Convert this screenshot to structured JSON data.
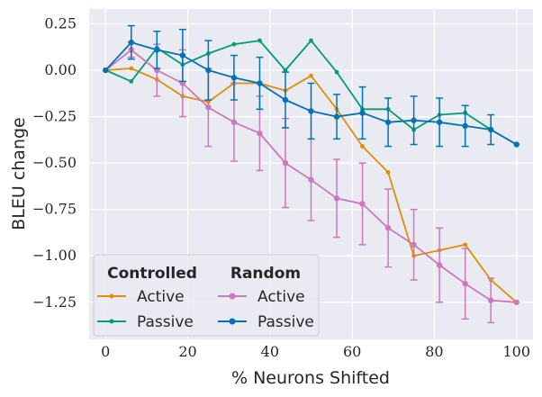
{
  "chart_data": {
    "type": "line",
    "xlabel": "% Neurons Shifted",
    "ylabel": "BLEU change",
    "xlim": [
      -4,
      104
    ],
    "ylim": [
      -1.45,
      0.33
    ],
    "xticks": [
      0,
      20,
      40,
      60,
      80,
      100
    ],
    "yticks": [
      0.25,
      0.0,
      -0.25,
      -0.5,
      -0.75,
      -1.0,
      -1.25
    ],
    "xtick_labels": [
      "0",
      "20",
      "40",
      "60",
      "80",
      "100"
    ],
    "ytick_labels": [
      "0.25",
      "0.00",
      "−0.25",
      "−0.50",
      "−0.75",
      "−1.00",
      "−1.25"
    ],
    "grid": true,
    "x": [
      0,
      6.25,
      12.5,
      18.75,
      25,
      31.25,
      37.5,
      43.75,
      50,
      56.25,
      62.5,
      68.75,
      75,
      81.25,
      87.5,
      93.75,
      100
    ],
    "legend": {
      "position": "lower-left",
      "groups": [
        {
          "title": "Controlled",
          "entries": [
            "Active",
            "Passive"
          ]
        },
        {
          "title": "Random",
          "entries": [
            "Active",
            "Passive"
          ]
        }
      ]
    },
    "series": [
      {
        "name": "Active",
        "group": "Controlled",
        "color": "#de8f05",
        "values": [
          0.0,
          0.01,
          -0.05,
          -0.14,
          -0.17,
          -0.07,
          -0.07,
          -0.11,
          -0.03,
          -0.21,
          -0.41,
          -0.55,
          -1.0,
          -0.97,
          -0.94,
          -1.13,
          -1.25
        ]
      },
      {
        "name": "Passive",
        "group": "Controlled",
        "color": "#029e73",
        "values": [
          0.0,
          -0.06,
          0.12,
          0.03,
          0.09,
          0.14,
          0.16,
          0.0,
          0.16,
          -0.01,
          -0.21,
          -0.21,
          -0.32,
          -0.24,
          -0.23,
          -0.32,
          -0.4
        ]
      },
      {
        "name": "Active",
        "group": "Random",
        "color": "#cc78bc",
        "values": [
          0.0,
          0.11,
          0.0,
          -0.07,
          -0.2,
          -0.28,
          -0.34,
          -0.5,
          -0.59,
          -0.69,
          -0.72,
          -0.85,
          -0.94,
          -1.05,
          -1.15,
          -1.24,
          -1.25
        ],
        "error": [
          0,
          0.04,
          0.14,
          0.18,
          0.21,
          0.21,
          0.2,
          0.24,
          0.22,
          0.21,
          0.22,
          0.21,
          0.19,
          0.2,
          0.19,
          0.12,
          0
        ]
      },
      {
        "name": "Passive",
        "group": "Random",
        "color": "#0173b2",
        "values": [
          0.0,
          0.15,
          0.11,
          0.08,
          0.0,
          -0.04,
          -0.07,
          -0.16,
          -0.22,
          -0.25,
          -0.23,
          -0.28,
          -0.27,
          -0.28,
          -0.3,
          -0.32,
          -0.4
        ],
        "error": [
          0,
          0.09,
          0.1,
          0.14,
          0.16,
          0.12,
          0.14,
          0.15,
          0.15,
          0.12,
          0.14,
          0.13,
          0.13,
          0.13,
          0.11,
          0.08,
          0
        ]
      }
    ]
  }
}
